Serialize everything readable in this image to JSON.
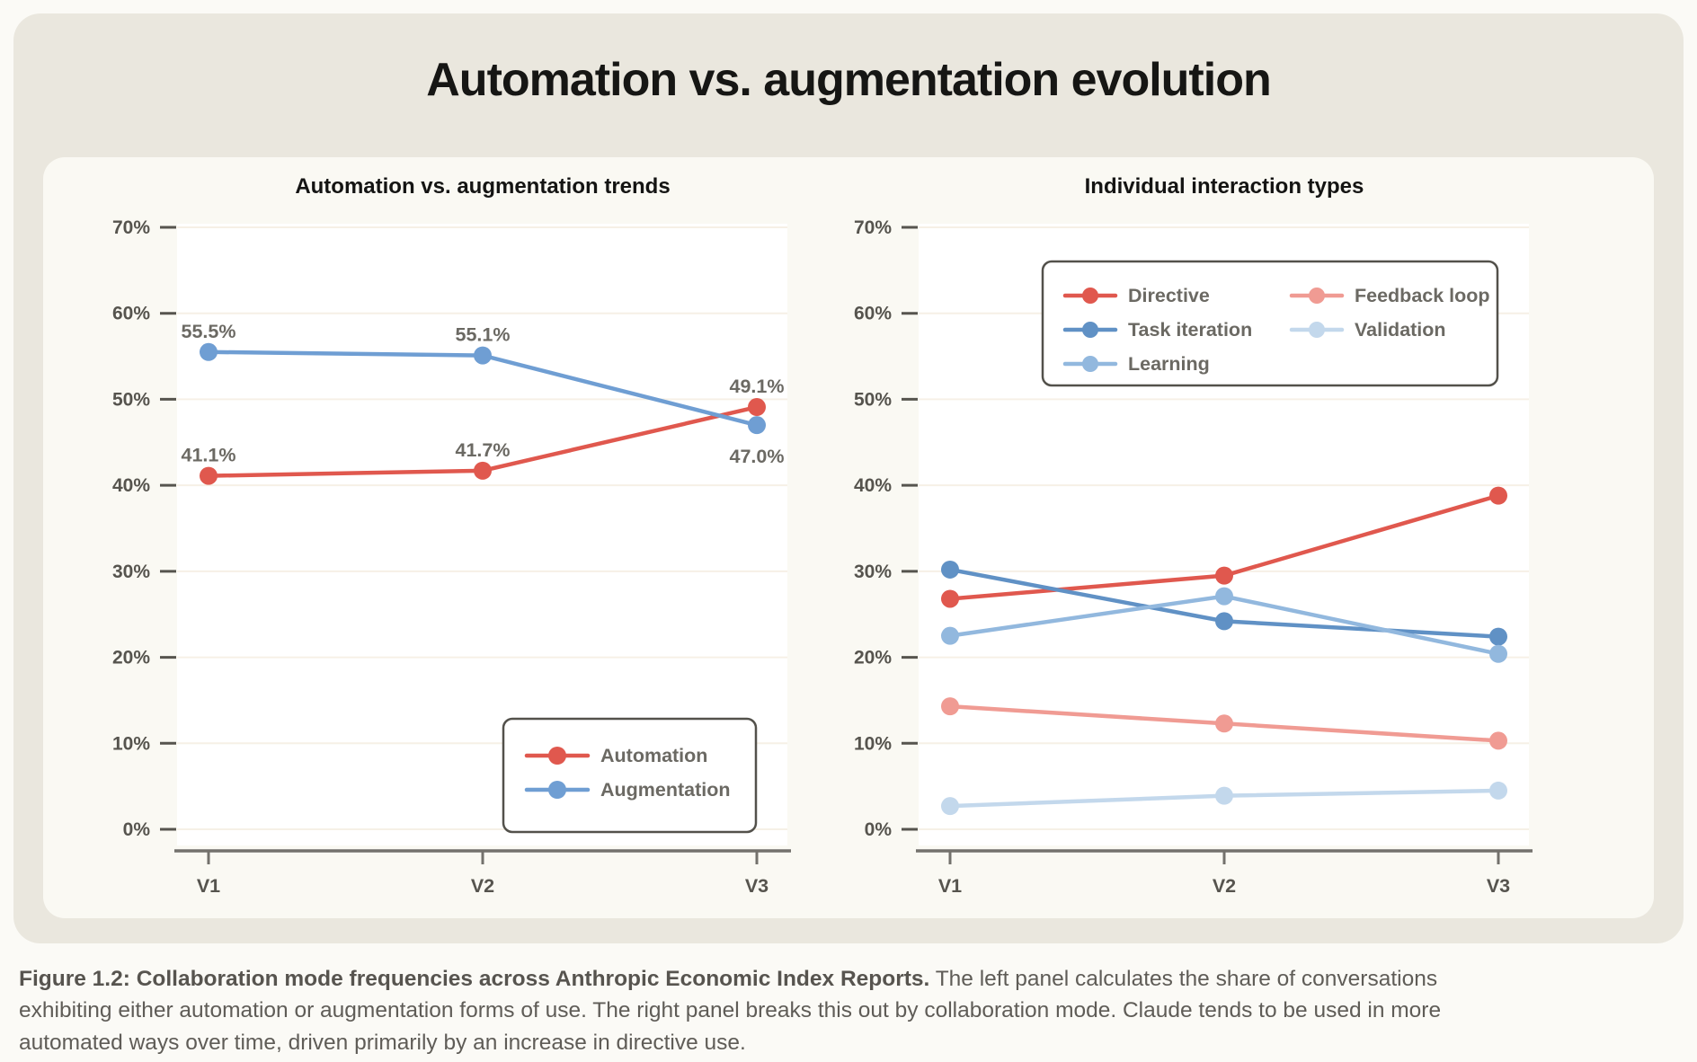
{
  "page": {
    "title": "Automation vs. augmentation evolution",
    "caption": {
      "bold": "Figure 1.2: Collaboration mode frequencies across Anthropic Economic Index Reports.",
      "rest": " The left panel calculates the share of conversations exhibiting either automation or augmentation forms of use. The right panel breaks this out by collaboration mode. Claude tends to be used in more automated ways over time, driven primarily by an increase in directive use."
    }
  },
  "colors": {
    "page_bg": "#fbfaf6",
    "card_bg": "#eae7de",
    "panel_bg": "#faf9f3",
    "plot_bg": "#ffffff",
    "gridline": "#f6f0e6",
    "axis": "#73716c",
    "tick_label": "#56544e",
    "data_label": "#6b6963",
    "legend_label": "#6b6963",
    "legend_border": "#53514b",
    "title": "#161614",
    "caption": "#5f5c57",
    "automation_red": "#e0584e",
    "augmentation_blue": "#6f9ed3",
    "task_iteration_blue": "#6091c5",
    "learning_blue": "#92b8de",
    "feedback_loop_salmon": "#f09b93",
    "validation_pale_blue": "#c3d8ec"
  },
  "chart_data": [
    {
      "type": "line",
      "title": "Automation vs. augmentation trends",
      "categories": [
        "V1",
        "V2",
        "V3"
      ],
      "xlabel": "",
      "ylabel": "",
      "ylim": [
        0,
        70
      ],
      "ytick_labels": [
        "0%",
        "10%",
        "20%",
        "30%",
        "40%",
        "50%",
        "60%",
        "70%"
      ],
      "grid": true,
      "legend_position": "lower-right",
      "series": [
        {
          "name": "Automation",
          "color": "#e0584e",
          "values": [
            41.1,
            41.7,
            49.1
          ],
          "point_labels": [
            "41.1%",
            "41.7%",
            "49.1%"
          ],
          "label_placement": [
            "above",
            "above",
            "above"
          ]
        },
        {
          "name": "Augmentation",
          "color": "#6f9ed3",
          "values": [
            55.5,
            55.1,
            47.0
          ],
          "point_labels": [
            "55.5%",
            "55.1%",
            "47.0%"
          ],
          "label_placement": [
            "above",
            "above",
            "below"
          ]
        }
      ]
    },
    {
      "type": "line",
      "title": "Individual interaction types",
      "categories": [
        "V1",
        "V2",
        "V3"
      ],
      "xlabel": "",
      "ylabel": "",
      "ylim": [
        0,
        70
      ],
      "ytick_labels": [
        "0%",
        "10%",
        "20%",
        "30%",
        "40%",
        "50%",
        "60%",
        "70%"
      ],
      "grid": true,
      "legend_position": "upper-center",
      "legend_columns": 2,
      "series": [
        {
          "name": "Directive",
          "color": "#e0584e",
          "values": [
            26.8,
            29.5,
            38.8
          ]
        },
        {
          "name": "Task iteration",
          "color": "#6091c5",
          "values": [
            30.2,
            24.2,
            22.4
          ]
        },
        {
          "name": "Learning",
          "color": "#92b8de",
          "values": [
            22.5,
            27.1,
            20.4
          ]
        },
        {
          "name": "Feedback loop",
          "color": "#f09b93",
          "values": [
            14.3,
            12.3,
            10.3
          ]
        },
        {
          "name": "Validation",
          "color": "#c3d8ec",
          "values": [
            2.7,
            3.9,
            4.5
          ]
        }
      ]
    }
  ]
}
